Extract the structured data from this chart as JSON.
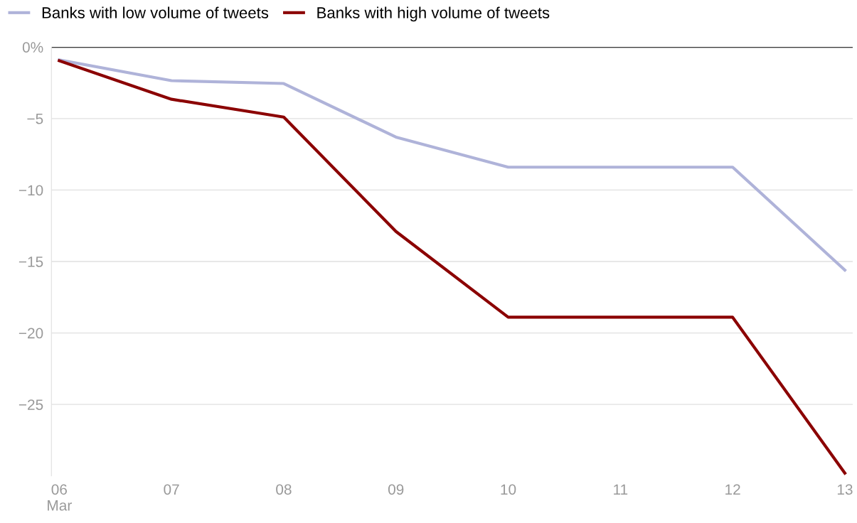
{
  "chart_data": {
    "type": "line",
    "categories": [
      "06\nMar",
      "07",
      "08",
      "09",
      "10",
      "11",
      "12",
      "13"
    ],
    "series": [
      {
        "name": "Banks with low volume of tweets",
        "color": "#afb3d9",
        "values": [
          -0.9,
          -2.35,
          -2.55,
          -6.3,
          -8.4,
          -8.4,
          -8.4,
          -15.6
        ]
      },
      {
        "name": "Banks with high volume of tweets",
        "color": "#8b0000",
        "values": [
          -0.95,
          -3.65,
          -4.9,
          -12.9,
          -18.9,
          -18.9,
          -18.9,
          -29.8
        ]
      }
    ],
    "ylim": [
      -30,
      0
    ],
    "yticks": [
      {
        "value": 0,
        "label": "0%"
      },
      -5,
      -10,
      -15,
      -20,
      -25
    ],
    "grid": "y",
    "legend": "top left",
    "marker": "none",
    "line_style": "solid",
    "ref_lines": [
      {
        "axis": "y",
        "value": 0,
        "color": "#000000"
      }
    ]
  }
}
